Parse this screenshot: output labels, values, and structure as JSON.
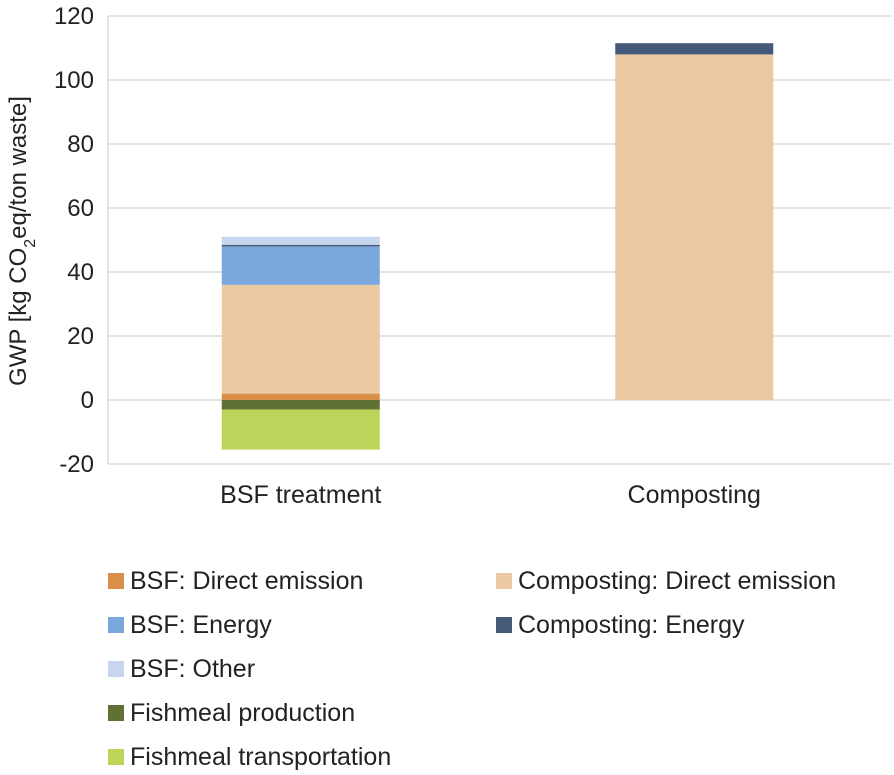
{
  "chart_data": {
    "type": "bar",
    "stacked": true,
    "categories": [
      "BSF treatment",
      "Composting"
    ],
    "ylabel": "GWP [kg CO₂eq/ton waste]",
    "ylim": [
      -20,
      120
    ],
    "yticks": [
      -20,
      0,
      20,
      40,
      60,
      80,
      100,
      120
    ],
    "grid": true,
    "legend_position": "bottom",
    "series": [
      {
        "name": "BSF: Direct emission",
        "color": "#d98f45",
        "values": [
          2,
          0
        ]
      },
      {
        "name": "BSF: Energy",
        "color": "#7ba7dc",
        "values": [
          12,
          0
        ]
      },
      {
        "name": "BSF: Other",
        "color": "#c6d6ee",
        "values": [
          2.5,
          0
        ]
      },
      {
        "name": "Fishmeal production",
        "color": "#5f7234",
        "values": [
          -3,
          0
        ]
      },
      {
        "name": "Fishmeal transportation",
        "color": "#bdd45a",
        "values": [
          -12.5,
          0
        ]
      },
      {
        "name": "Composting: Direct emission",
        "color": "#ebc9a3",
        "values": [
          34,
          108
        ]
      },
      {
        "name": "Composting: Energy",
        "color": "#455a78",
        "values": [
          0.5,
          3.5
        ]
      }
    ],
    "stack_order": [
      "BSF: Direct emission",
      "Composting: Direct emission",
      "BSF: Energy",
      "Composting: Energy",
      "BSF: Other",
      "Fishmeal production",
      "Fishmeal transportation"
    ]
  }
}
